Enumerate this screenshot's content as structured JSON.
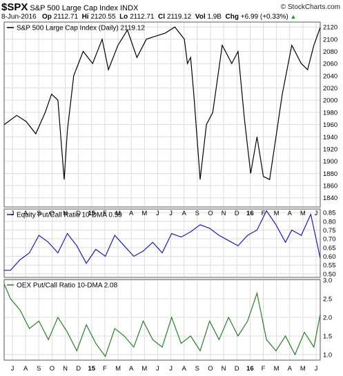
{
  "header": {
    "symbol": "$SPX",
    "name": "S&P 500 Large Cap Index",
    "exchange": "INDX",
    "date": "8-Jun-2016",
    "open_label": "Op",
    "open": "2112.71",
    "high_label": "Hi",
    "high": "2120.55",
    "low_label": "Lo",
    "low": "2112.71",
    "close_label": "Cl",
    "close": "2119.12",
    "volume_label": "Vol",
    "volume": "1.9B",
    "change_label": "Chg",
    "change": "+6.99 (+0.33%)",
    "up_icon": "triangle-up-icon",
    "up_color": "#2e8b2e"
  },
  "watermark": "© StockCharts.com",
  "chart_data": [
    {
      "type": "line",
      "legend": "S&P 500 Large Cap Index (Daily) 2119.12",
      "color": "#000000",
      "ylim": [
        1825,
        2128
      ],
      "yticks": [
        1840,
        1860,
        1880,
        1900,
        1920,
        1940,
        1960,
        1980,
        2000,
        2020,
        2040,
        2060,
        2080,
        2100,
        2120
      ],
      "x": [
        0,
        0.04,
        0.07,
        0.1,
        0.13,
        0.15,
        0.17,
        0.18,
        0.19,
        0.2,
        0.22,
        0.25,
        0.28,
        0.31,
        0.33,
        0.36,
        0.39,
        0.42,
        0.45,
        0.48,
        0.51,
        0.54,
        0.57,
        0.58,
        0.59,
        0.6,
        0.62,
        0.64,
        0.66,
        0.69,
        0.72,
        0.74,
        0.76,
        0.78,
        0.8,
        0.82,
        0.84,
        0.86,
        0.88,
        0.91,
        0.94,
        0.96,
        0.98,
        1.0
      ],
      "values": [
        1960,
        1975,
        1965,
        1945,
        1980,
        2010,
        2000,
        1935,
        1870,
        1950,
        2040,
        2080,
        2060,
        2100,
        2050,
        2090,
        2115,
        2070,
        2100,
        2105,
        2110,
        2120,
        2100,
        2060,
        2070,
        2010,
        1870,
        1960,
        1980,
        2090,
        2060,
        2080,
        1970,
        1880,
        1940,
        1875,
        1870,
        1940,
        2010,
        2090,
        2060,
        2050,
        2090,
        2119
      ]
    },
    {
      "type": "line",
      "legend": "Equity Put/Call Ratio 10-DMA 0.59",
      "color": "#1a1aa8",
      "ylim": [
        0.48,
        0.87
      ],
      "yticks": [
        0.5,
        0.55,
        0.6,
        0.65,
        0.7,
        0.75,
        0.8,
        0.85
      ],
      "x": [
        0,
        0.02,
        0.05,
        0.08,
        0.11,
        0.14,
        0.17,
        0.2,
        0.23,
        0.26,
        0.29,
        0.32,
        0.35,
        0.38,
        0.41,
        0.44,
        0.47,
        0.5,
        0.53,
        0.56,
        0.59,
        0.62,
        0.65,
        0.68,
        0.71,
        0.74,
        0.77,
        0.8,
        0.83,
        0.86,
        0.89,
        0.91,
        0.94,
        0.97,
        1.0
      ],
      "values": [
        0.52,
        0.52,
        0.58,
        0.62,
        0.72,
        0.68,
        0.62,
        0.73,
        0.66,
        0.56,
        0.64,
        0.6,
        0.72,
        0.66,
        0.6,
        0.63,
        0.68,
        0.62,
        0.73,
        0.71,
        0.74,
        0.78,
        0.76,
        0.72,
        0.69,
        0.66,
        0.72,
        0.75,
        0.86,
        0.78,
        0.68,
        0.75,
        0.72,
        0.84,
        0.59
      ]
    },
    {
      "type": "line",
      "legend": "OEX Put/Call Ratio 10-DMA 2.08",
      "color": "#2c7a2c",
      "ylim": [
        0.85,
        3.02
      ],
      "yticks": [
        1.0,
        1.5,
        2.0,
        2.5,
        3.0
      ],
      "x": [
        0,
        0.02,
        0.05,
        0.08,
        0.11,
        0.14,
        0.17,
        0.2,
        0.23,
        0.26,
        0.29,
        0.32,
        0.35,
        0.38,
        0.41,
        0.44,
        0.47,
        0.5,
        0.53,
        0.56,
        0.59,
        0.62,
        0.65,
        0.68,
        0.71,
        0.74,
        0.77,
        0.8,
        0.83,
        0.86,
        0.89,
        0.92,
        0.95,
        0.98,
        1.0
      ],
      "values": [
        2.9,
        2.5,
        2.2,
        1.7,
        1.9,
        1.4,
        2.0,
        1.6,
        1.1,
        1.8,
        1.3,
        0.95,
        1.7,
        1.5,
        1.2,
        1.9,
        1.4,
        1.2,
        2.0,
        1.3,
        1.5,
        1.1,
        1.9,
        1.4,
        2.0,
        1.5,
        1.9,
        2.65,
        1.4,
        1.1,
        1.5,
        1.0,
        1.6,
        1.2,
        2.08
      ]
    }
  ],
  "x_axis": {
    "labels": [
      "J",
      "A",
      "S",
      "O",
      "N",
      "D",
      "15",
      "F",
      "M",
      "A",
      "M",
      "J",
      "J",
      "A",
      "S",
      "O",
      "N",
      "D",
      "16",
      "F",
      "M",
      "A",
      "M",
      "J"
    ],
    "bold": [
      "15",
      "16"
    ]
  }
}
